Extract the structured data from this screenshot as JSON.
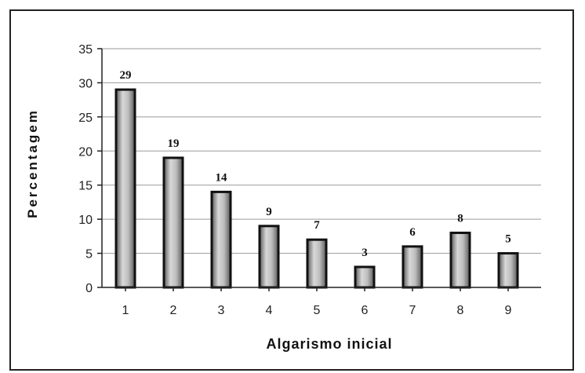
{
  "chart_data": {
    "type": "bar",
    "categories": [
      "1",
      "2",
      "3",
      "4",
      "5",
      "6",
      "7",
      "8",
      "9"
    ],
    "values": [
      29,
      19,
      14,
      9,
      7,
      3,
      6,
      8,
      5
    ],
    "data_labels": [
      "29",
      "19",
      "14",
      "9",
      "7",
      "3",
      "6",
      "8",
      "5"
    ],
    "xlabel": "Algarismo inicial",
    "ylabel": "Percentagem",
    "ylim": [
      0,
      35
    ],
    "yticks": [
      "0",
      "5",
      "10",
      "15",
      "20",
      "25",
      "30",
      "35"
    ],
    "grid": true,
    "bar_color": "#8a8a8a",
    "bar_outline_color": "#111111"
  }
}
